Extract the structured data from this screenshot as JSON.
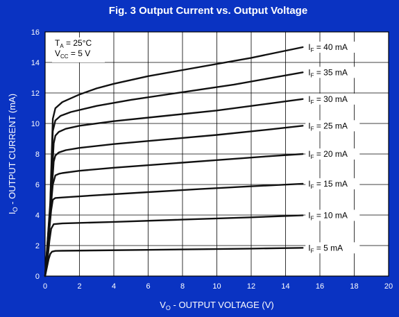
{
  "colors": {
    "frame": "#0a33c2",
    "header_text": "#ffffff",
    "plot_bg": "#ffffff",
    "grid": "#000000",
    "curve": "#111111",
    "axis_text": "#ffffff",
    "annotation_text": "#000000"
  },
  "chart_data": {
    "type": "line",
    "title": "Fig. 3  Output Current vs. Output Voltage",
    "xlabel": "V",
    "xlabel_sub": "O",
    "xlabel_rest": " - OUTPUT VOLTAGE (V)",
    "ylabel": "I",
    "ylabel_sub": "O",
    "ylabel_rest": " - OUTPUT CURRENT (mA)",
    "xlim": [
      0,
      20
    ],
    "ylim": [
      0,
      16
    ],
    "x_ticks": [
      "0",
      "2",
      "4",
      "6",
      "8",
      "10",
      "12",
      "14",
      "16",
      "18",
      "20"
    ],
    "y_ticks": [
      "0",
      "2",
      "4",
      "6",
      "8",
      "10",
      "12",
      "14",
      "16"
    ],
    "grid": true,
    "conditions": [
      {
        "main": "T",
        "sub": "A",
        "rest": " = 25°C"
      },
      {
        "main": "V",
        "sub": "CC",
        "rest": " = 5 V"
      }
    ],
    "series": [
      {
        "name": "I_F = 5 mA",
        "label_main": "I",
        "label_sub": "F",
        "label_rest": " = 5 mA",
        "points": [
          [
            0,
            0
          ],
          [
            0.1,
            0.55
          ],
          [
            0.2,
            1.1
          ],
          [
            0.3,
            1.45
          ],
          [
            0.4,
            1.6
          ],
          [
            0.6,
            1.65
          ],
          [
            1,
            1.66
          ],
          [
            3,
            1.68
          ],
          [
            6,
            1.72
          ],
          [
            9,
            1.76
          ],
          [
            12,
            1.8
          ],
          [
            15,
            1.85
          ]
        ]
      },
      {
        "name": "I_F = 10 mA",
        "label_main": "I",
        "label_sub": "F",
        "label_rest": " = 10 mA",
        "points": [
          [
            0,
            0
          ],
          [
            0.15,
            1.2
          ],
          [
            0.25,
            2.3
          ],
          [
            0.35,
            3.1
          ],
          [
            0.5,
            3.4
          ],
          [
            1,
            3.45
          ],
          [
            4,
            3.55
          ],
          [
            8,
            3.7
          ],
          [
            12,
            3.85
          ],
          [
            15,
            3.98
          ]
        ]
      },
      {
        "name": "I_F = 15 mA",
        "label_main": "I",
        "label_sub": "F",
        "label_rest": " = 15 mA",
        "points": [
          [
            0,
            0
          ],
          [
            0.2,
            2.5
          ],
          [
            0.35,
            4.3
          ],
          [
            0.45,
            5.0
          ],
          [
            0.6,
            5.12
          ],
          [
            1,
            5.15
          ],
          [
            3,
            5.3
          ],
          [
            6,
            5.5
          ],
          [
            9,
            5.7
          ],
          [
            12,
            5.88
          ],
          [
            15,
            6.05
          ]
        ]
      },
      {
        "name": "I_F = 20 mA",
        "label_main": "I",
        "label_sub": "F",
        "label_rest": " = 20 mA",
        "points": [
          [
            0,
            0
          ],
          [
            0.25,
            3.5
          ],
          [
            0.45,
            6.0
          ],
          [
            0.6,
            6.6
          ],
          [
            0.8,
            6.7
          ],
          [
            1,
            6.75
          ],
          [
            2,
            6.9
          ],
          [
            4,
            7.1
          ],
          [
            7,
            7.35
          ],
          [
            10,
            7.6
          ],
          [
            13,
            7.85
          ],
          [
            15,
            8.0
          ]
        ]
      },
      {
        "name": "I_F = 25 mA",
        "label_main": "I",
        "label_sub": "F",
        "label_rest": " = 25 mA",
        "points": [
          [
            0,
            0
          ],
          [
            0.3,
            4.2
          ],
          [
            0.5,
            7.5
          ],
          [
            0.6,
            7.9
          ],
          [
            0.8,
            8.1
          ],
          [
            1.2,
            8.25
          ],
          [
            2,
            8.4
          ],
          [
            4,
            8.65
          ],
          [
            7,
            8.95
          ],
          [
            10,
            9.25
          ],
          [
            13,
            9.6
          ],
          [
            15,
            9.85
          ]
        ]
      },
      {
        "name": "I_F = 30 mA",
        "label_main": "I",
        "label_sub": "F",
        "label_rest": " = 30 mA",
        "points": [
          [
            0,
            0
          ],
          [
            0.3,
            4.4
          ],
          [
            0.5,
            8.7
          ],
          [
            0.6,
            9.2
          ],
          [
            0.8,
            9.45
          ],
          [
            1.2,
            9.65
          ],
          [
            2,
            9.85
          ],
          [
            4,
            10.15
          ],
          [
            7,
            10.5
          ],
          [
            10,
            10.85
          ],
          [
            13,
            11.3
          ],
          [
            15,
            11.6
          ]
        ]
      },
      {
        "name": "I_F = 35 mA",
        "label_main": "I",
        "label_sub": "F",
        "label_rest": " = 35 mA",
        "points": [
          [
            0,
            0
          ],
          [
            0.3,
            4.6
          ],
          [
            0.45,
            9.5
          ],
          [
            0.6,
            10.2
          ],
          [
            0.9,
            10.5
          ],
          [
            1.5,
            10.75
          ],
          [
            3,
            11.15
          ],
          [
            5,
            11.55
          ],
          [
            8,
            12.05
          ],
          [
            11,
            12.55
          ],
          [
            13,
            12.95
          ],
          [
            15,
            13.35
          ]
        ]
      },
      {
        "name": "I_F = 40 mA",
        "label_main": "I",
        "label_sub": "F",
        "label_rest": " = 40 mA",
        "points": [
          [
            0,
            0
          ],
          [
            0.3,
            4.8
          ],
          [
            0.45,
            10.3
          ],
          [
            0.6,
            11.0
          ],
          [
            1,
            11.4
          ],
          [
            2,
            11.9
          ],
          [
            3,
            12.3
          ],
          [
            4,
            12.6
          ],
          [
            6,
            13.1
          ],
          [
            8,
            13.5
          ],
          [
            10,
            13.9
          ],
          [
            12,
            14.3
          ],
          [
            15,
            15.0
          ]
        ]
      }
    ]
  }
}
